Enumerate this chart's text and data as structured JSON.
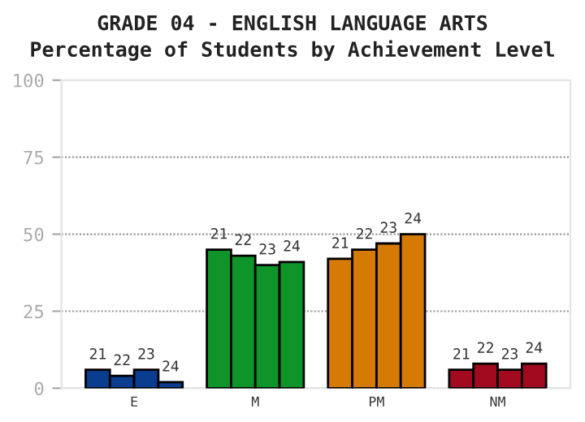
{
  "chart_data": {
    "type": "bar",
    "title": "GRADE 04 - ENGLISH LANGUAGE ARTS",
    "subtitle": "Percentage of Students by Achievement Level",
    "categories": [
      "E",
      "M",
      "PM",
      "NM"
    ],
    "series": [
      {
        "name": "21",
        "colors": [
          "#0a3d8f",
          "#0e9428",
          "#d67a06",
          "#a10a1f"
        ],
        "values": [
          6,
          45,
          42,
          6
        ]
      },
      {
        "name": "22",
        "colors": [
          "#0a3d8f",
          "#0e9428",
          "#d67a06",
          "#a10a1f"
        ],
        "values": [
          4,
          43,
          45,
          8
        ]
      },
      {
        "name": "23",
        "colors": [
          "#0a3d8f",
          "#0e9428",
          "#d67a06",
          "#a10a1f"
        ],
        "values": [
          6,
          40,
          47,
          6
        ]
      },
      {
        "name": "24",
        "colors": [
          "#0a3d8f",
          "#0e9428",
          "#d67a06",
          "#a10a1f"
        ],
        "values": [
          2,
          41,
          50,
          8
        ]
      }
    ],
    "ylim": [
      0,
      100
    ],
    "yticks": [
      0,
      25,
      50,
      75,
      100
    ],
    "grid": "y",
    "legend": false
  }
}
